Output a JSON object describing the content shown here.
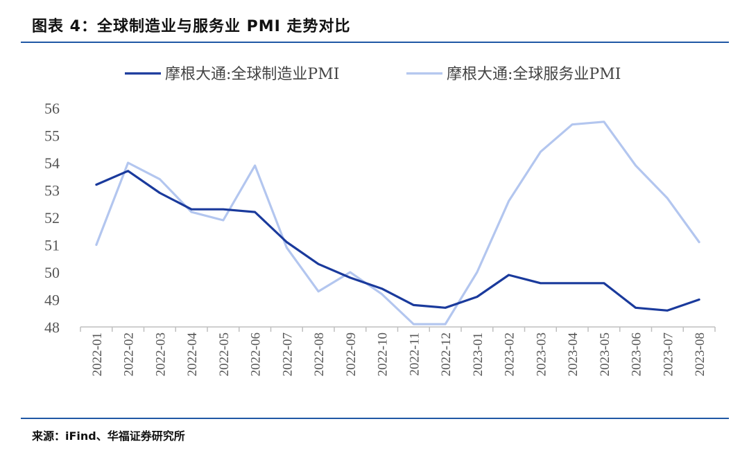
{
  "header": {
    "title": "图表 4：全球制造业与服务业 PMI 走势对比"
  },
  "footer": {
    "source": "来源：iFind、华福证券研究所"
  },
  "chart_data": {
    "type": "line",
    "title": "",
    "xlabel": "",
    "ylabel": "",
    "ylim": [
      48,
      56
    ],
    "yticks": [
      48,
      49,
      50,
      51,
      52,
      53,
      54,
      55,
      56
    ],
    "grid": false,
    "legend_position": "top",
    "categories": [
      "2022-01",
      "2022-02",
      "2022-03",
      "2022-04",
      "2022-05",
      "2022-06",
      "2022-07",
      "2022-08",
      "2022-09",
      "2022-10",
      "2022-11",
      "2022-12",
      "2023-01",
      "2023-02",
      "2023-03",
      "2023-04",
      "2023-05",
      "2023-06",
      "2023-07",
      "2023-08"
    ],
    "series": [
      {
        "name": "摩根大通:全球制造业PMI",
        "color": "#1a3a9c",
        "values": [
          53.2,
          53.7,
          52.9,
          52.3,
          52.3,
          52.2,
          51.1,
          50.3,
          49.8,
          49.4,
          48.8,
          48.7,
          49.1,
          49.9,
          49.6,
          49.6,
          49.6,
          48.7,
          48.6,
          49.0
        ]
      },
      {
        "name": "摩根大通:全球服务业PMI",
        "color": "#b3c6ef",
        "values": [
          51.0,
          54.0,
          53.4,
          52.2,
          51.9,
          53.9,
          50.9,
          49.3,
          50.0,
          49.2,
          48.1,
          48.1,
          50.0,
          52.6,
          54.4,
          55.4,
          55.5,
          53.9,
          52.7,
          51.1
        ]
      }
    ]
  }
}
